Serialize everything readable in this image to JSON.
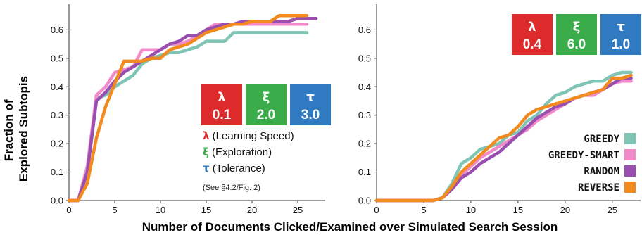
{
  "chart_data": [
    {
      "type": "line",
      "panel": "left",
      "xlim": [
        0,
        28
      ],
      "ylim": [
        0,
        0.69
      ],
      "xticks": [
        0,
        5,
        10,
        15,
        20,
        25
      ],
      "yticks": [
        0.0,
        0.1,
        0.2,
        0.3,
        0.4,
        0.5,
        0.6
      ],
      "ylabel_lines": [
        "Fraction of",
        "Explored Subtopis"
      ],
      "params": [
        {
          "symbol": "λ",
          "value": "0.1",
          "color": "#dd2a2a"
        },
        {
          "symbol": "ξ",
          "value": "2.0",
          "color": "#3aad4a"
        },
        {
          "symbol": "τ",
          "value": "3.0",
          "color": "#2f7ac0"
        }
      ],
      "param_descriptions": [
        {
          "symbol": "λ",
          "text": " (Learning Speed)",
          "color": "#dd2a2a"
        },
        {
          "symbol": "ξ",
          "text": " (Exploration)",
          "color": "#3aad4a"
        },
        {
          "symbol": "τ",
          "text": " (Tolerance)",
          "color": "#2f7ac0"
        }
      ],
      "note": "(See §4.2/Fig. 2)",
      "series": [
        {
          "key": "greedy",
          "color": "#7fc4b4",
          "x": [
            0,
            1,
            2,
            3,
            4,
            5,
            6,
            7,
            8,
            9,
            10,
            11,
            12,
            13,
            14,
            15,
            16,
            17,
            18,
            19,
            20,
            21,
            22,
            23,
            24,
            25,
            26
          ],
          "y": [
            0,
            0,
            0.1,
            0.36,
            0.37,
            0.4,
            0.42,
            0.44,
            0.48,
            0.5,
            0.51,
            0.52,
            0.52,
            0.53,
            0.54,
            0.56,
            0.56,
            0.56,
            0.59,
            0.59,
            0.59,
            0.59,
            0.59,
            0.59,
            0.59,
            0.59,
            0.59
          ]
        },
        {
          "key": "greedy_smart",
          "color": "#f08ac8",
          "x": [
            0,
            1,
            2,
            3,
            4,
            5,
            6,
            7,
            8,
            9,
            10,
            11,
            12,
            13,
            14,
            15,
            16,
            17,
            18,
            19,
            20,
            21,
            22,
            23,
            24,
            25,
            26
          ],
          "y": [
            0,
            0,
            0.12,
            0.37,
            0.4,
            0.45,
            0.46,
            0.47,
            0.53,
            0.53,
            0.53,
            0.55,
            0.55,
            0.56,
            0.58,
            0.6,
            0.62,
            0.62,
            0.62,
            0.62,
            0.62,
            0.62,
            0.62,
            0.62,
            0.62,
            0.62,
            0.62
          ]
        },
        {
          "key": "random",
          "color": "#9a4fb0",
          "x": [
            0,
            1,
            2,
            3,
            4,
            5,
            6,
            7,
            8,
            9,
            10,
            11,
            12,
            13,
            14,
            15,
            16,
            17,
            18,
            19,
            20,
            21,
            22,
            23,
            24,
            25,
            26,
            27
          ],
          "y": [
            0,
            0,
            0.1,
            0.35,
            0.38,
            0.42,
            0.45,
            0.47,
            0.49,
            0.51,
            0.53,
            0.55,
            0.56,
            0.58,
            0.58,
            0.6,
            0.61,
            0.62,
            0.62,
            0.63,
            0.63,
            0.63,
            0.63,
            0.63,
            0.63,
            0.64,
            0.64,
            0.64
          ]
        },
        {
          "key": "reverse",
          "color": "#f28a1f",
          "x": [
            0,
            1,
            2,
            3,
            4,
            5,
            6,
            7,
            8,
            9,
            10,
            11,
            12,
            13,
            14,
            15,
            16,
            17,
            18,
            19,
            20,
            21,
            22,
            23,
            24,
            25,
            26
          ],
          "y": [
            0,
            0,
            0.06,
            0.22,
            0.33,
            0.41,
            0.49,
            0.49,
            0.49,
            0.5,
            0.5,
            0.53,
            0.54,
            0.55,
            0.57,
            0.59,
            0.6,
            0.61,
            0.62,
            0.62,
            0.63,
            0.63,
            0.63,
            0.65,
            0.65,
            0.65,
            0.65
          ]
        }
      ]
    },
    {
      "type": "line",
      "panel": "right",
      "xlim": [
        0,
        28
      ],
      "ylim": [
        0,
        0.69
      ],
      "xticks": [
        0,
        5,
        10,
        15,
        20,
        25
      ],
      "yticks": [
        0.0,
        0.1,
        0.2,
        0.3,
        0.4,
        0.5,
        0.6
      ],
      "params": [
        {
          "symbol": "λ",
          "value": "0.4",
          "color": "#dd2a2a"
        },
        {
          "symbol": "ξ",
          "value": "6.0",
          "color": "#3aad4a"
        },
        {
          "symbol": "τ",
          "value": "1.0",
          "color": "#2f7ac0"
        }
      ],
      "legend": [
        {
          "label": "GREEDY",
          "color": "#7fc4b4"
        },
        {
          "label": "GREEDY-SMART",
          "color": "#f08ac8"
        },
        {
          "label": "RANDOM",
          "color": "#9a4fb0"
        },
        {
          "label": "REVERSE",
          "color": "#f28a1f"
        }
      ],
      "legend_position": "bottom-right",
      "series": [
        {
          "key": "greedy",
          "color": "#7fc4b4",
          "x": [
            0,
            6,
            7,
            8,
            9,
            10,
            11,
            12,
            13,
            14,
            15,
            16,
            17,
            18,
            19,
            20,
            21,
            22,
            23,
            24,
            25,
            26,
            27
          ],
          "y": [
            0,
            0,
            0.01,
            0.06,
            0.13,
            0.15,
            0.18,
            0.19,
            0.2,
            0.23,
            0.24,
            0.28,
            0.3,
            0.34,
            0.37,
            0.38,
            0.4,
            0.41,
            0.42,
            0.42,
            0.44,
            0.45,
            0.45
          ]
        },
        {
          "key": "greedy_smart",
          "color": "#f08ac8",
          "x": [
            0,
            6,
            7,
            8,
            9,
            10,
            11,
            12,
            13,
            14,
            15,
            16,
            17,
            18,
            19,
            20,
            21,
            22,
            23,
            24,
            25,
            26,
            27
          ],
          "y": [
            0,
            0,
            0.01,
            0.05,
            0.09,
            0.12,
            0.15,
            0.17,
            0.19,
            0.21,
            0.23,
            0.25,
            0.28,
            0.3,
            0.32,
            0.34,
            0.36,
            0.37,
            0.37,
            0.39,
            0.41,
            0.42,
            0.42
          ]
        },
        {
          "key": "random",
          "color": "#9a4fb0",
          "x": [
            0,
            6,
            7,
            8,
            9,
            10,
            11,
            12,
            13,
            14,
            15,
            16,
            17,
            18,
            19,
            20,
            21,
            22,
            23,
            24,
            25,
            26,
            27
          ],
          "y": [
            0,
            0,
            0.01,
            0.04,
            0.08,
            0.1,
            0.13,
            0.15,
            0.17,
            0.2,
            0.23,
            0.26,
            0.29,
            0.31,
            0.33,
            0.34,
            0.36,
            0.37,
            0.38,
            0.39,
            0.41,
            0.43,
            0.43
          ]
        },
        {
          "key": "reverse",
          "color": "#f28a1f",
          "x": [
            0,
            6,
            7,
            8,
            9,
            10,
            11,
            12,
            13,
            14,
            15,
            16,
            17,
            18,
            19,
            20,
            21,
            22,
            23,
            24,
            25,
            26,
            27
          ],
          "y": [
            0,
            0,
            0.01,
            0.05,
            0.1,
            0.13,
            0.16,
            0.19,
            0.22,
            0.23,
            0.26,
            0.3,
            0.32,
            0.33,
            0.34,
            0.35,
            0.36,
            0.37,
            0.38,
            0.39,
            0.43,
            0.43,
            0.44
          ]
        }
      ]
    }
  ],
  "shared_xlabel": "Number of Documents Clicked/Examined over Simulated Search Session"
}
